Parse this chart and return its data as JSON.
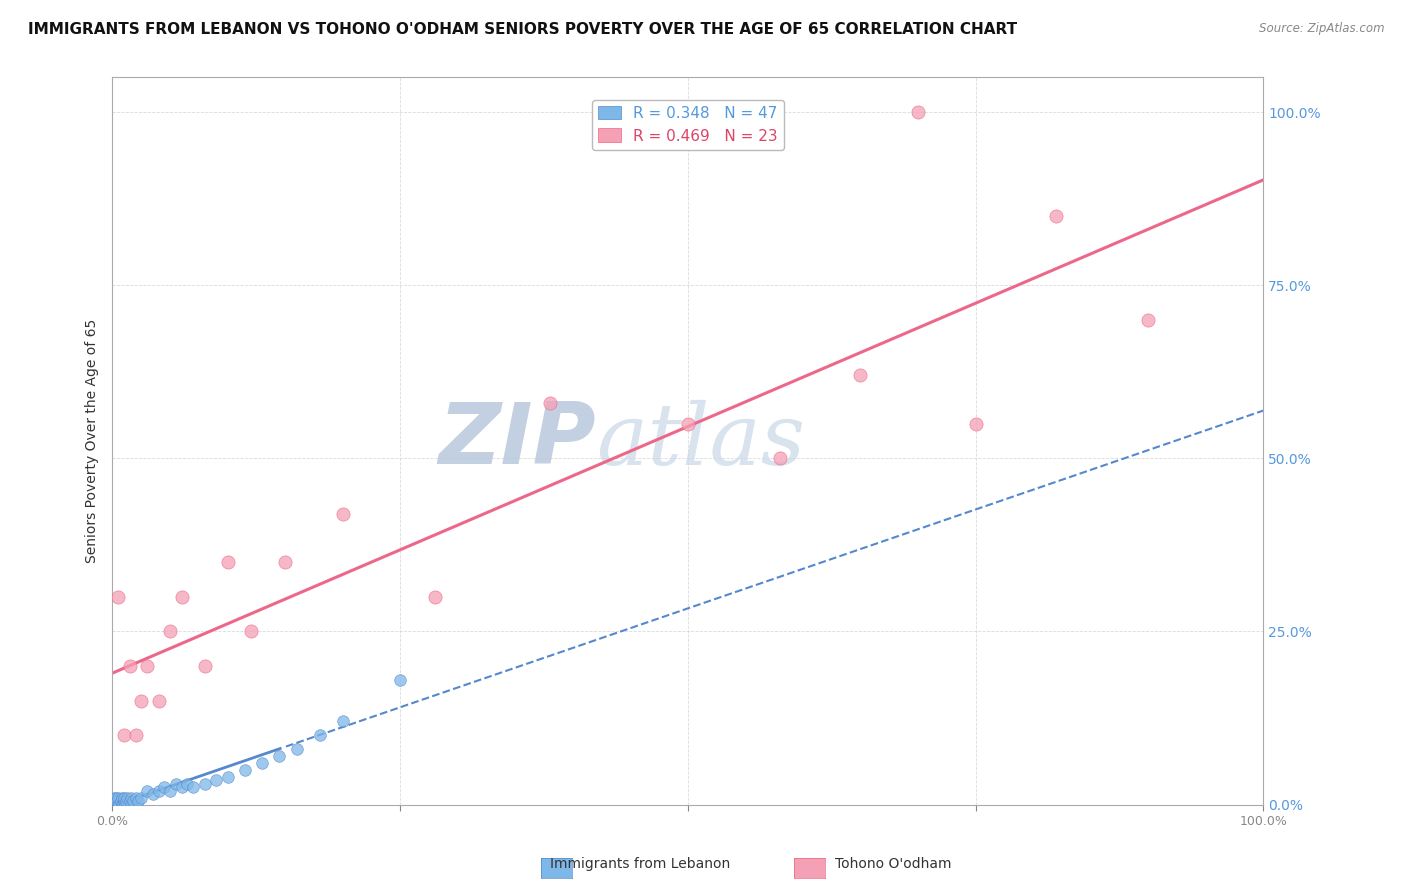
{
  "title": "IMMIGRANTS FROM LEBANON VS TOHONO O'ODHAM SENIORS POVERTY OVER THE AGE OF 65 CORRELATION CHART",
  "source": "Source: ZipAtlas.com",
  "ylabel": "Seniors Poverty Over the Age of 65",
  "legend_labels": [
    "Immigrants from Lebanon",
    "Tohono O'odham"
  ],
  "r_lebanon": 0.348,
  "n_lebanon": 47,
  "r_tohono": 0.469,
  "n_tohono": 23,
  "color_lebanon": "#7EB8E8",
  "color_tohono": "#F4A0B5",
  "color_lebanon_line": "#5588CC",
  "color_tohono_line": "#EE6688",
  "watermark_zip": "ZIP",
  "watermark_atlas": "atlas",
  "watermark_color": "#C8D4E8",
  "lebanon_x": [
    0.0,
    0.0,
    0.001,
    0.001,
    0.002,
    0.002,
    0.003,
    0.003,
    0.004,
    0.004,
    0.005,
    0.005,
    0.006,
    0.007,
    0.008,
    0.008,
    0.009,
    0.01,
    0.01,
    0.011,
    0.012,
    0.013,
    0.015,
    0.016,
    0.018,
    0.02,
    0.022,
    0.025,
    0.03,
    0.035,
    0.04,
    0.045,
    0.05,
    0.055,
    0.06,
    0.065,
    0.07,
    0.08,
    0.09,
    0.1,
    0.115,
    0.13,
    0.145,
    0.16,
    0.18,
    0.2,
    0.25
  ],
  "lebanon_y": [
    0.0,
    0.005,
    0.0,
    0.01,
    0.0,
    0.005,
    0.0,
    0.01,
    0.0,
    0.005,
    0.0,
    0.01,
    0.0,
    0.005,
    0.0,
    0.01,
    0.0,
    0.005,
    0.01,
    0.0,
    0.005,
    0.01,
    0.005,
    0.01,
    0.005,
    0.01,
    0.005,
    0.01,
    0.02,
    0.015,
    0.02,
    0.025,
    0.02,
    0.03,
    0.025,
    0.03,
    0.025,
    0.03,
    0.035,
    0.04,
    0.05,
    0.06,
    0.07,
    0.08,
    0.1,
    0.12,
    0.18
  ],
  "tohono_x": [
    0.005,
    0.01,
    0.015,
    0.02,
    0.025,
    0.03,
    0.04,
    0.05,
    0.06,
    0.08,
    0.1,
    0.12,
    0.15,
    0.2,
    0.28,
    0.38,
    0.5,
    0.58,
    0.65,
    0.7,
    0.75,
    0.82,
    0.9
  ],
  "tohono_y": [
    0.3,
    0.1,
    0.2,
    0.1,
    0.15,
    0.2,
    0.15,
    0.25,
    0.3,
    0.2,
    0.35,
    0.25,
    0.35,
    0.42,
    0.3,
    0.58,
    0.55,
    0.5,
    0.62,
    1.0,
    0.55,
    0.85,
    0.7
  ],
  "xlim": [
    0.0,
    1.0
  ],
  "ylim": [
    0.0,
    1.05
  ],
  "yticks": [
    0.0,
    0.25,
    0.5,
    0.75,
    1.0
  ],
  "ytick_labels_right": [
    "0.0%",
    "25.0%",
    "50.0%",
    "75.0%",
    "100.0%"
  ],
  "xticks": [
    0.0,
    0.25,
    0.5,
    0.75,
    1.0
  ],
  "xtick_labels": [
    "0.0%",
    "",
    "",
    "",
    "100.0%"
  ],
  "grid_color": "#CCCCCC",
  "background_color": "#FFFFFF",
  "title_fontsize": 11,
  "label_fontsize": 10,
  "tick_fontsize": 9,
  "legend_fontsize": 11,
  "axis_color": "#AAAAAA",
  "right_tick_color": "#5599DD"
}
